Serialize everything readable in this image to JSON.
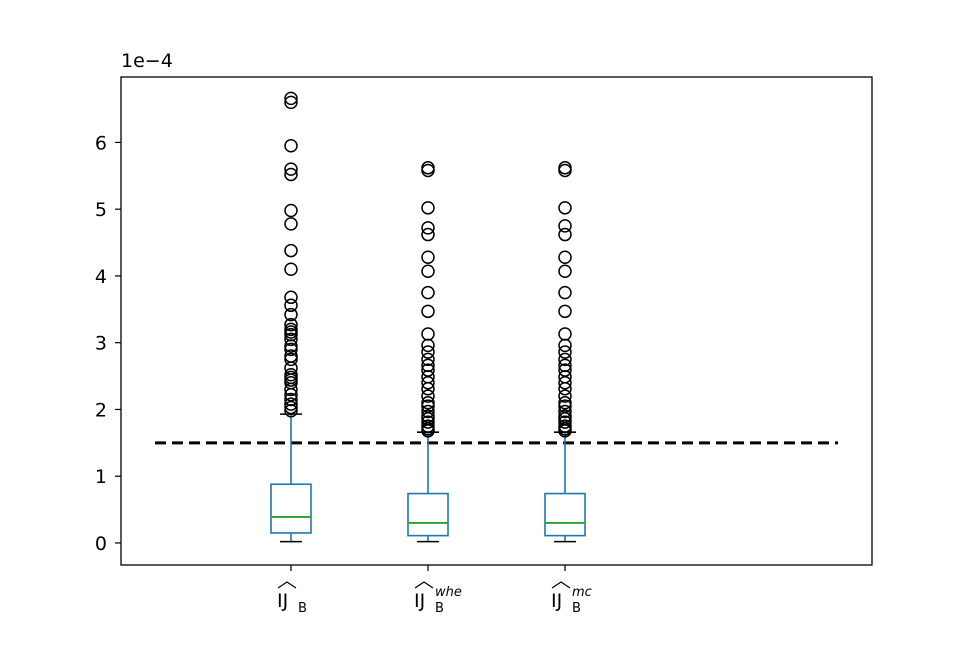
{
  "chart_data": {
    "type": "box",
    "title": "",
    "xlabel": "",
    "ylabel": "",
    "y_offset_label": "1e−4",
    "y_scale": 0.0001,
    "ylim": [
      -0.33,
      6.98
    ],
    "y_ticks": [
      0,
      1,
      2,
      3,
      4,
      5,
      6
    ],
    "grid": false,
    "colors": {
      "box": "#1f77b4",
      "median": "#2ca02c",
      "whisker_cap": "#000000",
      "flier": "#000000",
      "reference_line": "#000000",
      "axes": "#000000"
    },
    "reference_line": {
      "y": 1.5,
      "style": "dashed"
    },
    "categories": [
      {
        "base": "IJ",
        "sub": "B",
        "sup": ""
      },
      {
        "base": "IJ",
        "sub": "B",
        "sup": "whe"
      },
      {
        "base": "IJ",
        "sub": "B",
        "sup": "mc"
      }
    ],
    "boxes": [
      {
        "whisker_low": 0.02,
        "q1": 0.15,
        "median": 0.39,
        "q3": 0.88,
        "whisker_high": 1.93,
        "fliers": [
          6.66,
          6.6,
          5.95,
          5.6,
          5.52,
          4.98,
          4.78,
          4.38,
          4.1,
          3.68,
          3.56,
          3.42,
          3.27,
          3.2,
          3.16,
          3.12,
          3.05,
          2.95,
          2.9,
          2.8,
          2.75,
          2.62,
          2.52,
          2.48,
          2.44,
          2.4,
          2.3,
          2.22,
          2.15,
          2.08,
          2.03,
          1.98
        ]
      },
      {
        "whisker_low": 0.02,
        "q1": 0.11,
        "median": 0.3,
        "q3": 0.74,
        "whisker_high": 1.66,
        "fliers": [
          5.62,
          5.58,
          5.02,
          4.72,
          4.62,
          4.28,
          4.07,
          3.75,
          3.47,
          3.13,
          2.96,
          2.86,
          2.75,
          2.66,
          2.59,
          2.49,
          2.4,
          2.31,
          2.2,
          2.1,
          2.05,
          1.97,
          1.9,
          1.86,
          1.81,
          1.75,
          1.71,
          1.68
        ]
      },
      {
        "whisker_low": 0.02,
        "q1": 0.11,
        "median": 0.3,
        "q3": 0.74,
        "whisker_high": 1.66,
        "fliers": [
          5.62,
          5.58,
          5.02,
          4.75,
          4.62,
          4.28,
          4.07,
          3.75,
          3.47,
          3.13,
          2.96,
          2.86,
          2.75,
          2.66,
          2.59,
          2.49,
          2.4,
          2.31,
          2.2,
          2.1,
          2.05,
          1.97,
          1.9,
          1.86,
          1.81,
          1.75,
          1.71,
          1.68
        ]
      }
    ]
  }
}
